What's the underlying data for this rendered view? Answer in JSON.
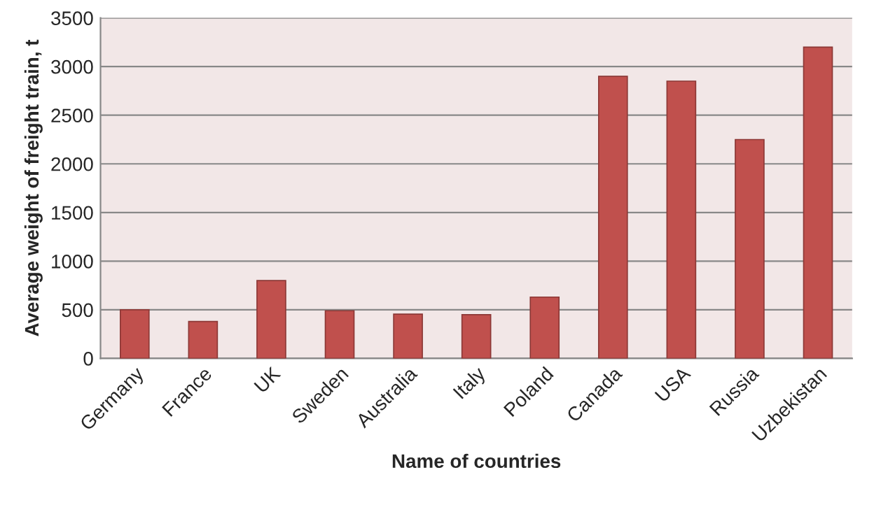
{
  "chart_data": {
    "type": "bar",
    "xlabel": "Name of countries",
    "ylabel": "Average weight of freight train, t",
    "categories": [
      "Germany",
      "France",
      "UK",
      "Sweden",
      "Australia",
      "Italy",
      "Poland",
      "Canada",
      "USA",
      "Russia",
      "Uzbekistan"
    ],
    "values": [
      500,
      380,
      800,
      490,
      455,
      450,
      630,
      2900,
      2850,
      2250,
      3200
    ],
    "color": "#c0504d",
    "ylim": [
      0,
      3500
    ],
    "yticks": [
      0,
      500,
      1000,
      1500,
      2000,
      2500,
      3000,
      3500
    ],
    "grid": "y"
  }
}
